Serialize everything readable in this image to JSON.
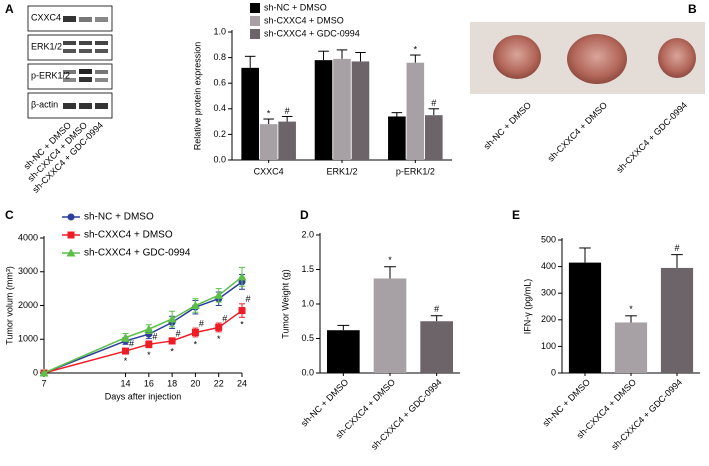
{
  "blot": {
    "label": "A",
    "rows": [
      "CXXC4",
      "ERK1/2",
      "p-ERK1/2",
      "β-actin"
    ],
    "lanes": [
      "sh-NC + DMSO",
      "sh-CXXC4 + DMSO",
      "sh-CXXC4 + GDC-0994"
    ]
  },
  "photo": {
    "label": "B",
    "lanes": [
      "sh-NC + DMSO",
      "sh-CXXC4 + DMSO",
      "sh-CXXC4 + GDC-0994"
    ]
  },
  "chart_data": [
    {
      "type": "bar",
      "ylabel": "Relative protein expression",
      "categories": [
        "CXXC4",
        "ERK1/2",
        "p-ERK1/2"
      ],
      "series": [
        {
          "name": "sh-NC + DMSO",
          "color": "#000000",
          "values": [
            0.72,
            0.78,
            0.34
          ],
          "errors": [
            0.09,
            0.07,
            0.03
          ],
          "sig_labels": [
            null,
            null,
            null
          ]
        },
        {
          "name": "sh-CXXC4 + DMSO",
          "color": "#a7a1a6",
          "values": [
            0.28,
            0.79,
            0.76
          ],
          "errors": [
            0.04,
            0.07,
            0.06
          ],
          "sig_labels": [
            "*",
            null,
            "*"
          ]
        },
        {
          "name": "sh-CXXC4 + GDC-0994",
          "color": "#6c6469",
          "values": [
            0.3,
            0.77,
            0.35
          ],
          "errors": [
            0.04,
            0.07,
            0.05
          ],
          "sig_labels": [
            "#",
            null,
            "#"
          ]
        }
      ],
      "ylim": [
        0,
        1.0
      ],
      "yticks": [
        {
          "value": 0,
          "label": "0.0"
        },
        {
          "value": 0.2,
          "label": "0.2"
        },
        {
          "value": 0.4,
          "label": "0.4"
        },
        {
          "value": 0.6,
          "label": "0.6"
        },
        {
          "value": 0.8,
          "label": "0.8"
        },
        {
          "value": 1.0,
          "label": "1.0"
        }
      ],
      "legend": "top"
    },
    {
      "type": "line",
      "label": "C",
      "xlabel": "Days after injection",
      "ylabel": "Tumor volum (mm³)",
      "x": [
        7,
        14,
        16,
        18,
        20,
        22,
        24
      ],
      "series": [
        {
          "name": "sh-NC + DMSO",
          "color": "#2b3e9c",
          "marker": "circle",
          "values": [
            0,
            950,
            1150,
            1500,
            1950,
            2200,
            2700
          ],
          "errors": [
            0,
            100,
            130,
            180,
            200,
            200,
            220
          ]
        },
        {
          "name": "sh-CXXC4 + DMSO",
          "color": "#ee1c25",
          "marker": "square",
          "values": [
            0,
            650,
            850,
            950,
            1200,
            1350,
            1850
          ],
          "errors": [
            0,
            80,
            100,
            90,
            130,
            130,
            200
          ],
          "sig_labels": [
            null,
            "#",
            "#",
            "#",
            "#",
            "#",
            "#"
          ],
          "sig_below": [
            null,
            "*",
            "*",
            "*",
            "*",
            "*",
            "*"
          ]
        },
        {
          "name": "sh-CXXC4 + GDC-0994",
          "color": "#5cbf4a",
          "marker": "triangle",
          "values": [
            0,
            1050,
            1300,
            1600,
            2000,
            2300,
            2850
          ],
          "errors": [
            0,
            120,
            130,
            230,
            200,
            200,
            280
          ]
        }
      ],
      "xlim": [
        7,
        24
      ],
      "xticks": [
        7,
        14,
        16,
        18,
        20,
        22,
        24
      ],
      "ylim": [
        0,
        4000
      ],
      "yticks": [
        0,
        1000,
        2000,
        3000,
        4000
      ],
      "legend": "top-left"
    },
    {
      "type": "bar",
      "label": "D",
      "ylabel": "Tumor Weight (g)",
      "categories": [
        "sh-NC + DMSO",
        "sh-CXXC4 + DMSO",
        "sh-CXXC4 + GDC-0994"
      ],
      "values": [
        0.62,
        1.37,
        0.75
      ],
      "errors": [
        0.07,
        0.17,
        0.08
      ],
      "sig_labels": [
        null,
        "*",
        "#"
      ],
      "colors": [
        "#000000",
        "#a7a1a6",
        "#6c6469"
      ],
      "ylim": [
        0,
        2.0
      ],
      "yticks": [
        {
          "value": 0,
          "label": "0.0"
        },
        {
          "value": 0.5,
          "label": "0.5"
        },
        {
          "value": 1.0,
          "label": "1.0"
        },
        {
          "value": 1.5,
          "label": "1.5"
        },
        {
          "value": 2.0,
          "label": "2.0"
        }
      ]
    },
    {
      "type": "bar",
      "label": "E",
      "ylabel": "IFN-γ (pg/mL)",
      "categories": [
        "sh-NC + DMSO",
        "sh-CXXC4 + DMSO",
        "sh-CXXC4 + GDC-0994"
      ],
      "values": [
        415,
        190,
        395
      ],
      "errors": [
        55,
        25,
        50
      ],
      "sig_labels": [
        null,
        "*",
        "#"
      ],
      "colors": [
        "#000000",
        "#a7a1a6",
        "#6c6469"
      ],
      "ylim": [
        0,
        500
      ],
      "yticks": [
        0,
        100,
        200,
        300,
        400,
        500
      ]
    }
  ]
}
